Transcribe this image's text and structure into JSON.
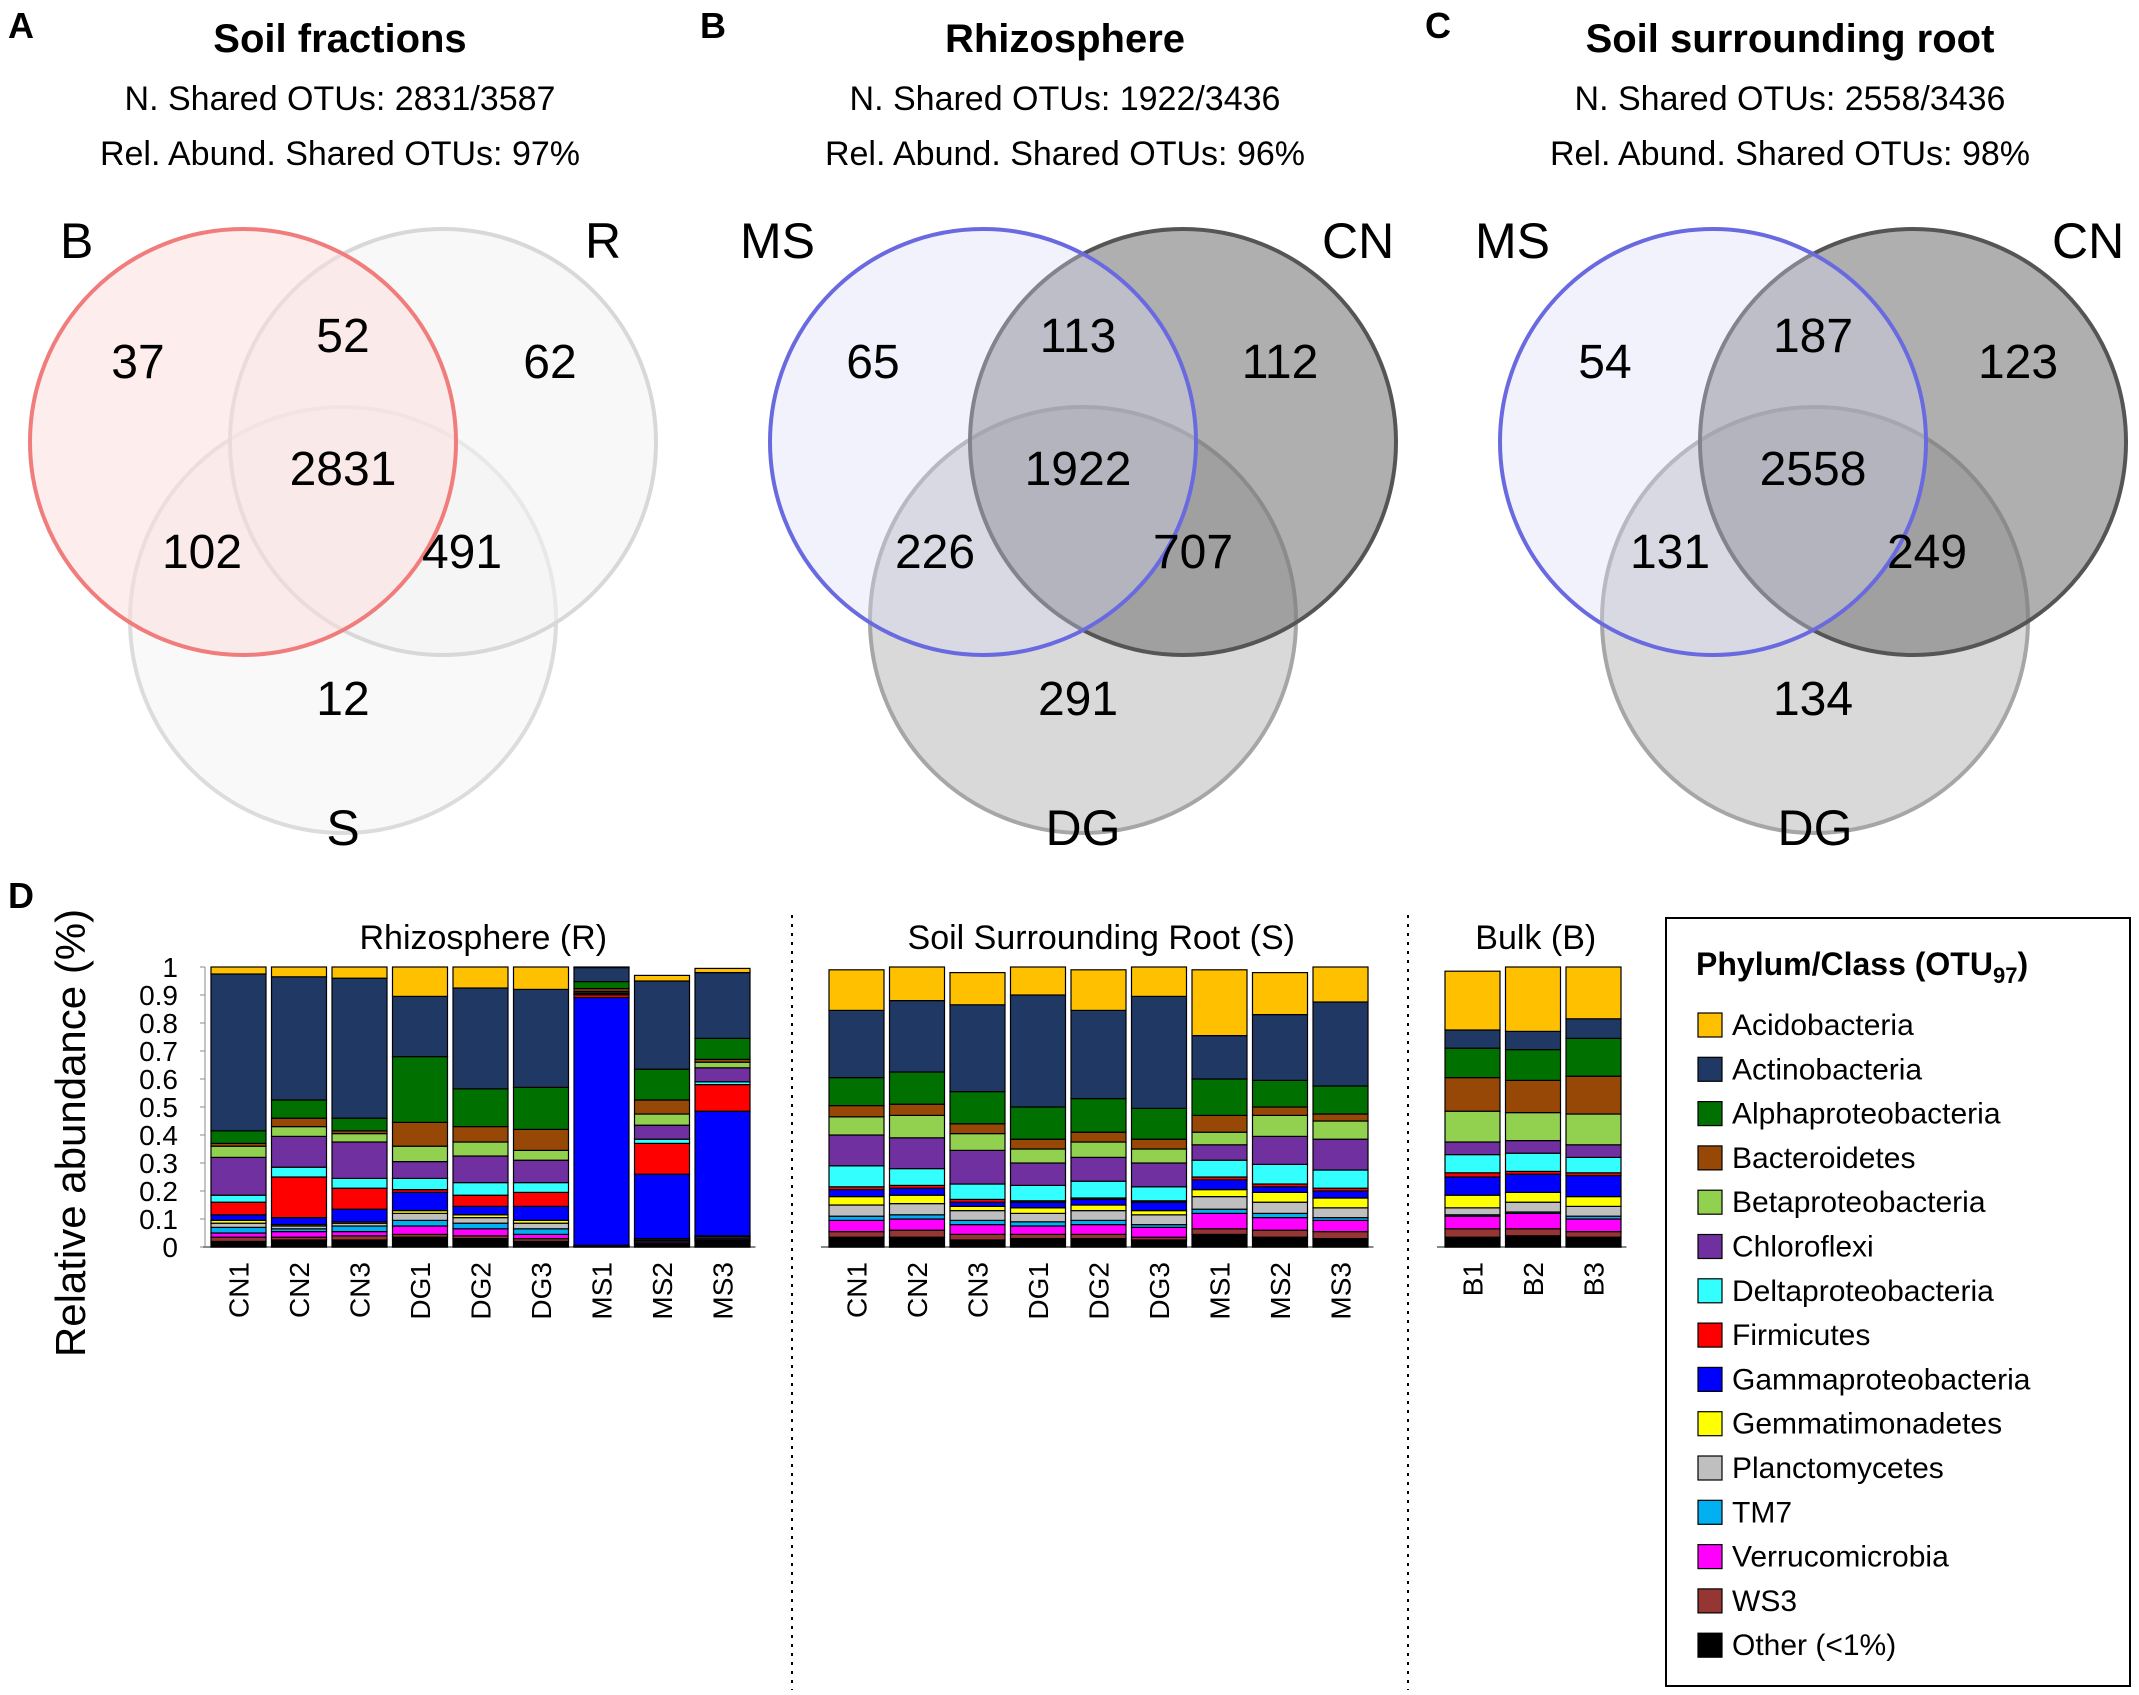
{
  "panels": {
    "A": {
      "letter": "A",
      "title": "Soil fractions",
      "shared": "N. Shared OTUs: 2831/3587",
      "relabund": "Rel. Abund. Shared OTUs: 97%",
      "set_top_left": "B",
      "set_top_right": "R",
      "set_bottom": "S",
      "counts": {
        "only_top_left": "37",
        "top_pair": "52",
        "only_top_right": "62",
        "center": "2831",
        "left_pair": "102",
        "right_pair": "491",
        "only_bottom": "12"
      },
      "colors": {
        "top_left_fill": "#fcdede",
        "top_left_stroke": "#f07c7c",
        "top_right_fill": "#f2f2f2",
        "top_right_stroke": "#d8d8d8",
        "bottom_fill": "#f4f4f4",
        "bottom_stroke": "#dcdcdc"
      }
    },
    "B": {
      "letter": "B",
      "title": "Rhizosphere",
      "shared": "N. Shared OTUs: 1922/3436",
      "relabund": "Rel. Abund. Shared OTUs: 96%",
      "set_top_left": "MS",
      "set_top_right": "CN",
      "set_bottom": "DG",
      "counts": {
        "only_top_left": "65",
        "top_pair": "113",
        "only_top_right": "112",
        "center": "1922",
        "left_pair": "226",
        "right_pair": "707",
        "only_bottom": "291"
      },
      "colors": {
        "top_left_fill": "#d9d9f7",
        "top_left_stroke": "#6a6ae0",
        "top_right_fill": "#7a7a7a",
        "top_right_stroke": "#555555",
        "bottom_fill": "#bfbfbf",
        "bottom_stroke": "#a6a6a6"
      }
    },
    "C": {
      "letter": "C",
      "title": "Soil surrounding root",
      "shared": "N. Shared OTUs: 2558/3436",
      "relabund": "Rel. Abund. Shared OTUs: 98%",
      "set_top_left": "MS",
      "set_top_right": "CN",
      "set_bottom": "DG",
      "counts": {
        "only_top_left": "54",
        "top_pair": "187",
        "only_top_right": "123",
        "center": "2558",
        "left_pair": "131",
        "right_pair": "249",
        "only_bottom": "134"
      },
      "colors": {
        "top_left_fill": "#d9d9f7",
        "top_left_stroke": "#6a6ae0",
        "top_right_fill": "#7a7a7a",
        "top_right_stroke": "#555555",
        "bottom_fill": "#bfbfbf",
        "bottom_stroke": "#a6a6a6"
      }
    },
    "D": {
      "letter": "D"
    }
  },
  "chart_data": {
    "type": "stacked-bar",
    "ylabel": "Relative abundance (%)",
    "ylim": [
      0,
      1
    ],
    "yticks": [
      "0",
      "0.1",
      "0.2",
      "0.3",
      "0.4",
      "0.5",
      "0.6",
      "0.7",
      "0.8",
      "0.9",
      "1"
    ],
    "groups": [
      {
        "title": "Rhizosphere (R)",
        "samples": [
          "CN1",
          "CN2",
          "CN3",
          "DG1",
          "DG2",
          "DG3",
          "MS1",
          "MS2",
          "MS3"
        ]
      },
      {
        "title": "Soil Surrounding Root (S)",
        "samples": [
          "CN1",
          "CN2",
          "CN3",
          "DG1",
          "DG2",
          "DG3",
          "MS1",
          "MS2",
          "MS3"
        ]
      },
      {
        "title": "Bulk (B)",
        "samples": [
          "B1",
          "B2",
          "B3"
        ]
      }
    ],
    "legend_title": "Phylum/Class (OTU",
    "legend_title_sub": "97",
    "legend_title_end": ")",
    "series": [
      {
        "name": "Acidobacteria",
        "color": "#ffc000",
        "values": [
          0.025,
          0.035,
          0.04,
          0.105,
          0.075,
          0.08,
          0.002,
          0.02,
          0.015,
          0.145,
          0.12,
          0.115,
          0.1,
          0.145,
          0.11,
          0.235,
          0.15,
          0.125,
          0.21,
          0.23,
          0.19
        ]
      },
      {
        "name": "Actinobacteria",
        "color": "#1f3864",
        "values": [
          0.56,
          0.44,
          0.5,
          0.215,
          0.36,
          0.35,
          0.05,
          0.315,
          0.235,
          0.24,
          0.255,
          0.31,
          0.4,
          0.315,
          0.4,
          0.155,
          0.235,
          0.3,
          0.065,
          0.065,
          0.07
        ]
      },
      {
        "name": "Alphaproteobacteria",
        "color": "#007000",
        "values": [
          0.045,
          0.065,
          0.045,
          0.235,
          0.135,
          0.15,
          0.025,
          0.11,
          0.075,
          0.1,
          0.115,
          0.115,
          0.115,
          0.12,
          0.11,
          0.13,
          0.095,
          0.1,
          0.105,
          0.11,
          0.135
        ]
      },
      {
        "name": "Bacteroidetes",
        "color": "#974706",
        "values": [
          0.01,
          0.03,
          0.01,
          0.085,
          0.055,
          0.075,
          0.01,
          0.05,
          0.01,
          0.04,
          0.04,
          0.035,
          0.035,
          0.035,
          0.035,
          0.06,
          0.03,
          0.025,
          0.12,
          0.115,
          0.135
        ]
      },
      {
        "name": "Betaproteobacteria",
        "color": "#92d050",
        "values": [
          0.04,
          0.035,
          0.03,
          0.055,
          0.05,
          0.035,
          0.005,
          0.04,
          0.02,
          0.065,
          0.08,
          0.06,
          0.05,
          0.055,
          0.05,
          0.045,
          0.075,
          0.065,
          0.11,
          0.1,
          0.11
        ]
      },
      {
        "name": "Chloroflexi",
        "color": "#7030a0",
        "values": [
          0.135,
          0.11,
          0.13,
          0.06,
          0.095,
          0.08,
          0.005,
          0.05,
          0.05,
          0.11,
          0.11,
          0.12,
          0.08,
          0.085,
          0.085,
          0.055,
          0.1,
          0.11,
          0.045,
          0.045,
          0.045
        ]
      },
      {
        "name": "Deltaproteobacteria",
        "color": "#33ffff",
        "values": [
          0.025,
          0.035,
          0.035,
          0.04,
          0.045,
          0.035,
          0.002,
          0.015,
          0.01,
          0.075,
          0.06,
          0.055,
          0.055,
          0.06,
          0.05,
          0.06,
          0.07,
          0.065,
          0.065,
          0.065,
          0.055
        ]
      },
      {
        "name": "Firmicutes",
        "color": "#ff0000",
        "values": [
          0.045,
          0.145,
          0.075,
          0.01,
          0.04,
          0.05,
          0.01,
          0.11,
          0.095,
          0.01,
          0.01,
          0.01,
          0.005,
          0.005,
          0.005,
          0.01,
          0.01,
          0.01,
          0.015,
          0.01,
          0.01
        ]
      },
      {
        "name": "Gammaproteobacteria",
        "color": "#0000ff",
        "values": [
          0.02,
          0.025,
          0.045,
          0.065,
          0.03,
          0.05,
          0.885,
          0.23,
          0.445,
          0.025,
          0.025,
          0.015,
          0.02,
          0.02,
          0.03,
          0.035,
          0.02,
          0.025,
          0.065,
          0.065,
          0.075
        ]
      },
      {
        "name": "Gemmatimonadetes",
        "color": "#ffff00",
        "values": [
          0.01,
          0.005,
          0.005,
          0.01,
          0.01,
          0.01,
          0.001,
          0.002,
          0.002,
          0.03,
          0.03,
          0.015,
          0.02,
          0.02,
          0.015,
          0.025,
          0.035,
          0.035,
          0.045,
          0.035,
          0.035
        ]
      },
      {
        "name": "Planctomycetes",
        "color": "#bfbfbf",
        "values": [
          0.015,
          0.01,
          0.01,
          0.025,
          0.02,
          0.02,
          0.001,
          0.005,
          0.005,
          0.04,
          0.04,
          0.035,
          0.03,
          0.035,
          0.035,
          0.045,
          0.04,
          0.035,
          0.025,
          0.035,
          0.035
        ]
      },
      {
        "name": "TM7",
        "color": "#00b0f0",
        "values": [
          0.02,
          0.01,
          0.02,
          0.02,
          0.02,
          0.02,
          0.001,
          0.005,
          0.005,
          0.015,
          0.015,
          0.015,
          0.015,
          0.015,
          0.01,
          0.015,
          0.015,
          0.01,
          0.005,
          0.005,
          0.01
        ]
      },
      {
        "name": "Verrucomicrobia",
        "color": "#ff00ff",
        "values": [
          0.015,
          0.02,
          0.015,
          0.03,
          0.025,
          0.015,
          0.001,
          0.005,
          0.005,
          0.04,
          0.04,
          0.035,
          0.03,
          0.035,
          0.035,
          0.055,
          0.045,
          0.04,
          0.045,
          0.055,
          0.045
        ]
      },
      {
        "name": "WS3",
        "color": "#963634",
        "values": [
          0.015,
          0.01,
          0.015,
          0.01,
          0.01,
          0.01,
          0.001,
          0.003,
          0.003,
          0.02,
          0.025,
          0.02,
          0.015,
          0.015,
          0.01,
          0.02,
          0.025,
          0.025,
          0.03,
          0.025,
          0.02
        ]
      },
      {
        "name": "Other (<1%)",
        "color": "#000000",
        "values": [
          0.02,
          0.025,
          0.025,
          0.035,
          0.03,
          0.02,
          0.001,
          0.01,
          0.02,
          0.035,
          0.035,
          0.025,
          0.03,
          0.03,
          0.025,
          0.045,
          0.035,
          0.03,
          0.035,
          0.04,
          0.035
        ]
      }
    ]
  }
}
